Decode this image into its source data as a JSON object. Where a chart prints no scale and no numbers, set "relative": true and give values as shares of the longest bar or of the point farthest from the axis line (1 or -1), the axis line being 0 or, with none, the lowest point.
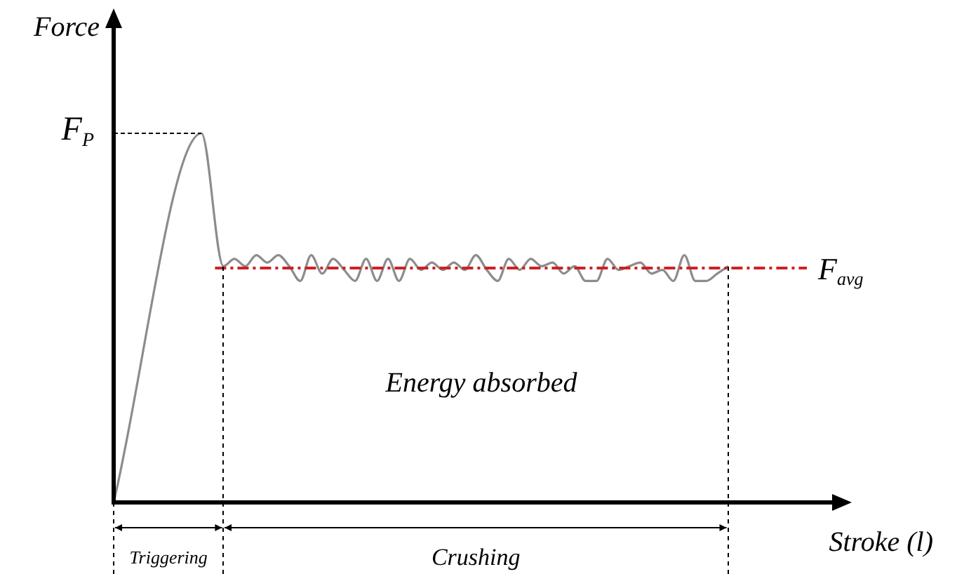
{
  "chart_data": {
    "type": "line",
    "relative": true,
    "xlabel": "Stroke (l)",
    "ylabel": "Force",
    "categories": [
      null,
      null,
      null,
      null,
      null,
      null,
      null,
      null,
      null,
      null,
      null,
      null,
      null,
      null,
      null,
      null,
      null,
      null,
      null,
      null,
      null,
      null,
      null,
      null,
      null,
      null,
      null,
      null,
      null,
      null,
      null,
      null,
      null,
      null,
      null,
      null,
      null,
      null,
      null,
      null,
      null,
      null,
      null,
      null,
      null,
      null,
      null,
      null,
      null,
      null,
      null,
      null,
      null,
      null,
      null,
      null,
      null,
      null,
      null,
      null,
      null,
      null,
      null,
      null,
      null,
      null,
      null,
      null
    ],
    "series": [
      {
        "color": "#8c8c8c",
        "values": [
          0,
          null,
          null,
          null,
          null,
          null,
          null,
          null,
          1,
          null,
          0.64,
          0.66,
          0.64,
          0.67,
          0.65,
          0.67,
          0.64,
          0.6,
          0.67,
          0.62,
          0.66,
          0.63,
          0.6,
          0.66,
          0.6,
          0.66,
          0.6,
          0.66,
          0.63,
          0.65,
          0.63,
          0.65,
          0.63,
          0.67,
          0.63,
          0.6,
          0.66,
          0.63,
          0.66,
          0.64,
          0.65,
          0.62,
          0.64,
          0.6,
          0.6,
          0.66,
          0.63,
          0.64,
          0.65,
          0.62,
          0.63,
          0.6,
          0.67,
          0.6,
          0.6,
          0.62,
          0.64,
          null,
          null,
          null,
          null,
          null,
          null,
          null,
          null,
          null,
          null,
          null
        ]
      }
    ],
    "ref_lines": [
      {
        "axis": "y",
        "value": 0.635,
        "label": "F$_{avg}$",
        "color": "#cc2222",
        "line_style": "dashed"
      }
    ],
    "annotations": [
      "F$_{P}$",
      "Energy absorbed",
      "Triggering",
      "Crushing"
    ],
    "legend": false,
    "marker": "none",
    "line_style": "solid"
  }
}
